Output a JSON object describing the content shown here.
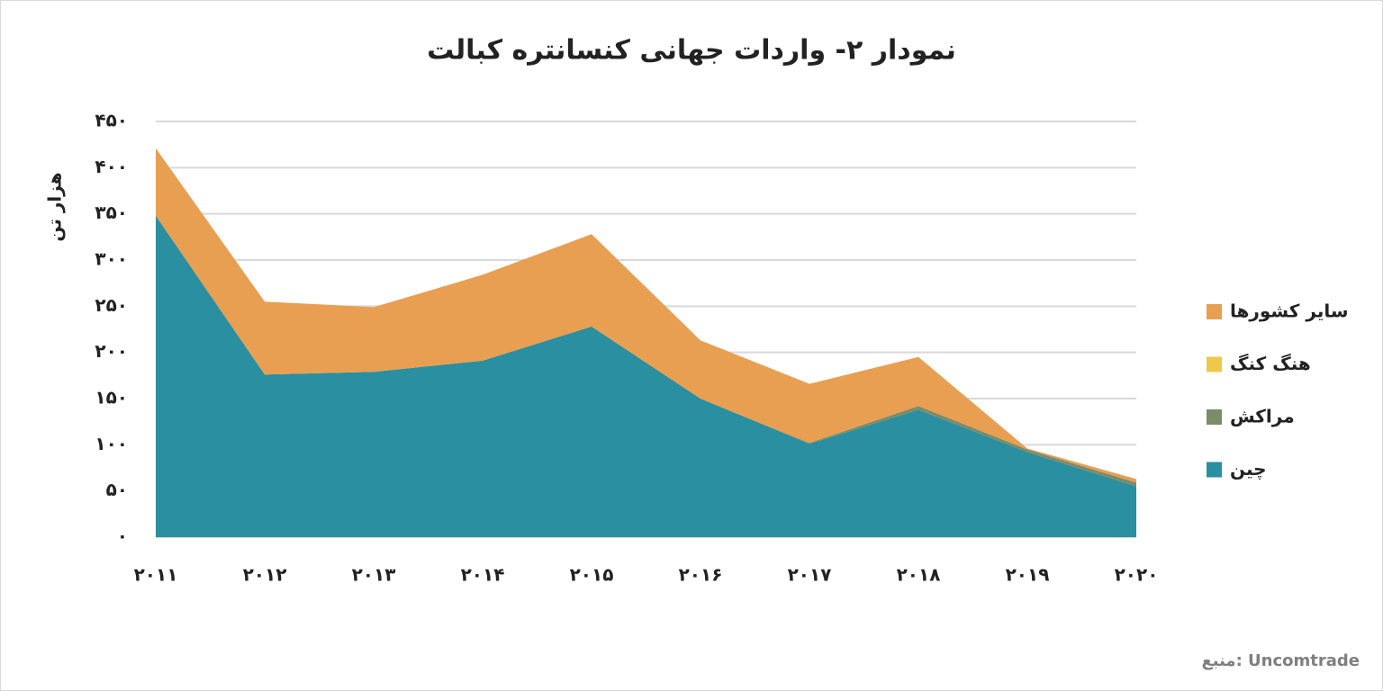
{
  "chart_data": {
    "type": "area",
    "stacked": true,
    "title": "نمودار ۲- واردات جهانی کنسانتره کبالت",
    "y_label": "هزار تن",
    "source": "منبع: Uncomtrade",
    "categories": [
      "۲۰۱۱",
      "۲۰۱۲",
      "۲۰۱۳",
      "۲۰۱۴",
      "۲۰۱۵",
      "۲۰۱۶",
      "۲۰۱۷",
      "۲۰۱۸",
      "۲۰۱۹",
      "۲۰۲۰"
    ],
    "series": [
      {
        "name": "چین",
        "color": "#2a8fa0",
        "values": [
          348,
          176,
          179,
          191,
          228,
          150,
          101,
          138,
          92,
          55
        ]
      },
      {
        "name": "مراکش",
        "color": "#7d8b68",
        "values": [
          0,
          0,
          0,
          0,
          0,
          0,
          1,
          4,
          3,
          4
        ]
      },
      {
        "name": "هنگ کنگ",
        "color": "#efc84a",
        "values": [
          0,
          0,
          0,
          0,
          0,
          0,
          0,
          0,
          0,
          0
        ]
      },
      {
        "name": "سایر کشورها",
        "color": "#e89f52",
        "values": [
          73,
          79,
          70,
          93,
          100,
          63,
          64,
          53,
          1,
          4
        ]
      }
    ],
    "ylim": [
      0,
      450
    ],
    "yticks": [
      {
        "value": 0,
        "label": "۰"
      },
      {
        "value": 50,
        "label": "۵۰"
      },
      {
        "value": 100,
        "label": "۱۰۰"
      },
      {
        "value": 150,
        "label": "۱۵۰"
      },
      {
        "value": 200,
        "label": "۲۰۰"
      },
      {
        "value": 250,
        "label": "۲۵۰"
      },
      {
        "value": 300,
        "label": "۳۰۰"
      },
      {
        "value": 350,
        "label": "۳۵۰"
      },
      {
        "value": 400,
        "label": "۴۰۰"
      },
      {
        "value": 450,
        "label": "۴۵۰"
      }
    ],
    "grid": true,
    "legend": "right"
  }
}
